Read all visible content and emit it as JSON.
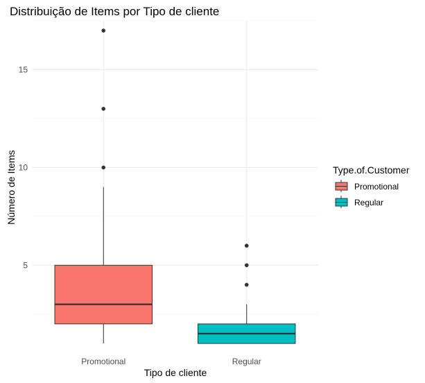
{
  "chart_data": {
    "type": "boxplot",
    "title": "Distribuição de Items por Tipo de cliente",
    "xlabel": "Tipo de cliente",
    "ylabel": "Número de Items",
    "categories": [
      "Promotional",
      "Regular"
    ],
    "ylim": [
      1,
      17.5
    ],
    "yticks": [
      5,
      10,
      15
    ],
    "grid": true,
    "legend": {
      "title": "Type.of.Customer",
      "position": "right",
      "entries": [
        "Promotional",
        "Regular"
      ]
    },
    "boxes": [
      {
        "category": "Promotional",
        "color": "#F8766D",
        "min": 1,
        "q1": 2,
        "median": 3,
        "q3": 5,
        "max": 9,
        "outliers": [
          10,
          13,
          17
        ]
      },
      {
        "category": "Regular",
        "color": "#00BFC4",
        "min": 1,
        "q1": 1,
        "median": 1.5,
        "q3": 2,
        "max": 3,
        "outliers": [
          4,
          5,
          6
        ]
      }
    ]
  }
}
